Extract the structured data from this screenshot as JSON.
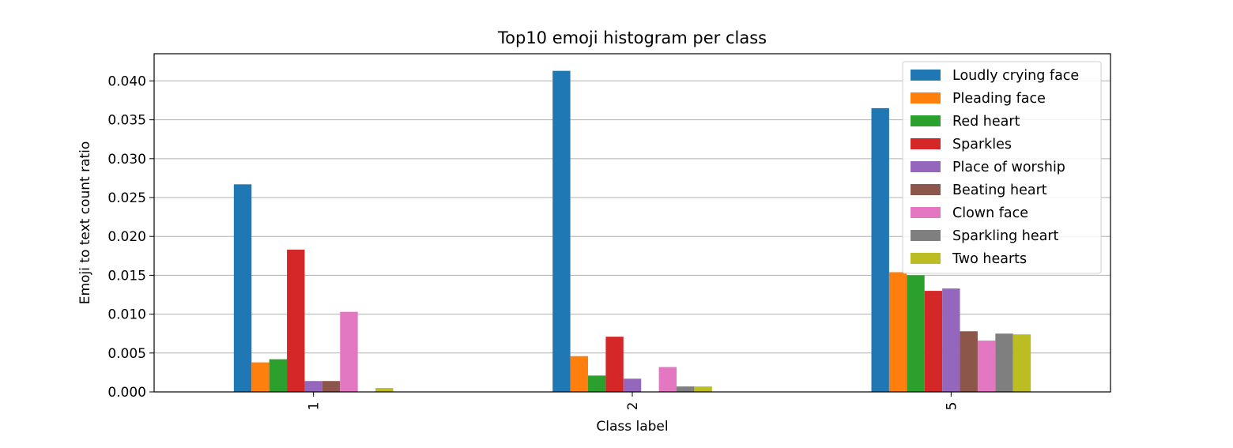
{
  "chart_data": {
    "type": "bar",
    "title": "Top10 emoji histogram per class",
    "xlabel": "Class label",
    "ylabel": "Emoji to text count ratio",
    "categories": [
      "1",
      "2",
      "5"
    ],
    "ylim": [
      0,
      0.0435
    ],
    "yticks": [
      "0.000",
      "0.005",
      "0.010",
      "0.015",
      "0.020",
      "0.025",
      "0.030",
      "0.035",
      "0.040"
    ],
    "grid": true,
    "legend_position": "top-right",
    "series": [
      {
        "name": "Loudly crying face",
        "color": "#1f77b4",
        "values": [
          0.0267,
          0.0413,
          0.0365
        ]
      },
      {
        "name": "Pleading face",
        "color": "#ff7f0e",
        "values": [
          0.0038,
          0.0046,
          0.0154
        ]
      },
      {
        "name": "Red heart",
        "color": "#2ca02c",
        "values": [
          0.0042,
          0.0021,
          0.015
        ]
      },
      {
        "name": "Sparkles",
        "color": "#d62728",
        "values": [
          0.0183,
          0.0071,
          0.013
        ]
      },
      {
        "name": "Place of worship",
        "color": "#9467bd",
        "values": [
          0.0014,
          0.0017,
          0.0133
        ]
      },
      {
        "name": "Beating heart",
        "color": "#8c564b",
        "values": [
          0.0014,
          0.0,
          0.0078
        ]
      },
      {
        "name": "Clown face",
        "color": "#e377c2",
        "values": [
          0.0103,
          0.0032,
          0.0066
        ]
      },
      {
        "name": "Sparkling heart",
        "color": "#7f7f7f",
        "values": [
          0.0,
          0.0007,
          0.0075
        ]
      },
      {
        "name": "Two hearts",
        "color": "#bcbd22",
        "values": [
          0.0005,
          0.0007,
          0.0074
        ]
      }
    ]
  }
}
